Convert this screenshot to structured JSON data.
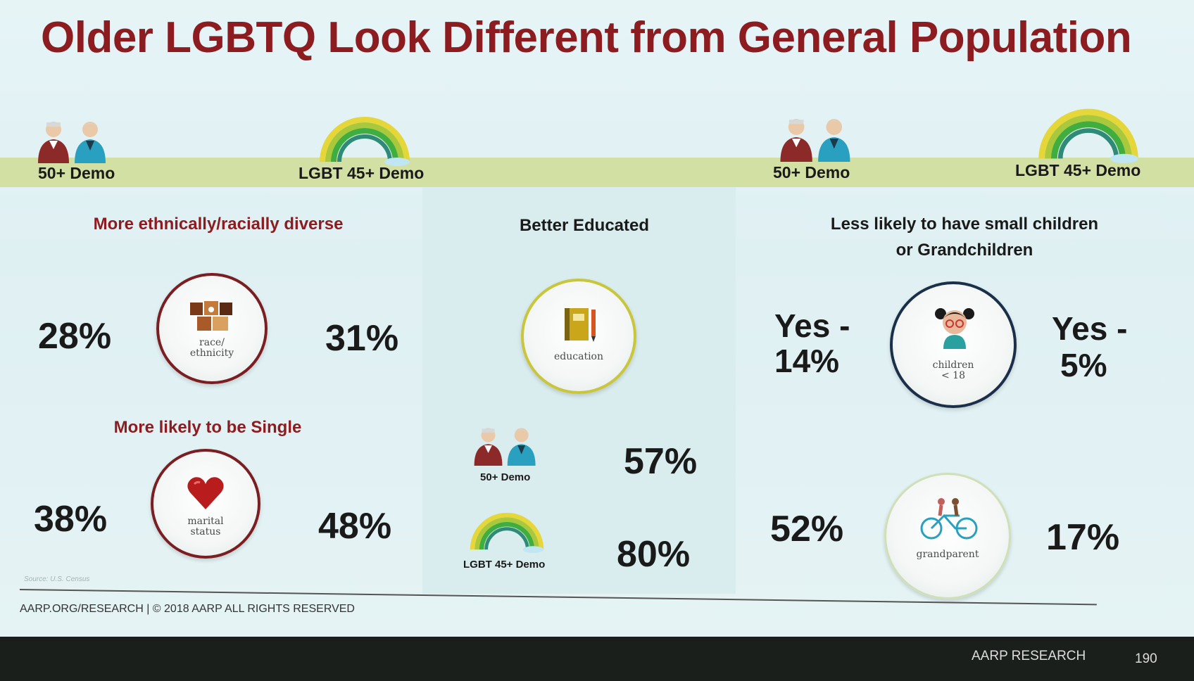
{
  "title": "Older LGBTQ Look Different from General Population",
  "band": {
    "left_demo": "50+ Demo",
    "left_lgbt": "LGBT 45+ Demo",
    "right_demo": "50+ Demo",
    "right_lgbt": "LGBT 45+ Demo"
  },
  "diverse": {
    "heading": "More ethnically/racially diverse",
    "left_pct": "28%",
    "right_pct": "31%",
    "icon_label_1": "race/",
    "icon_label_2": "ethnicity"
  },
  "single": {
    "heading": "More likely to be Single",
    "left_pct": "38%",
    "right_pct": "48%",
    "icon_label_1": "marital",
    "icon_label_2": "status"
  },
  "education": {
    "heading": "Better Educated",
    "icon_label": "education",
    "demo_label": "50+ Demo",
    "demo_pct": "57%",
    "lgbt_label": "LGBT 45+ Demo",
    "lgbt_pct": "80%"
  },
  "children": {
    "heading_line1": "Less likely to have small children",
    "heading_line2": "or Grandchildren",
    "left_yes": "Yes -",
    "left_pct": "14%",
    "right_yes": "Yes -",
    "right_pct": "5%",
    "icon_label_1": "children",
    "icon_label_2": "< 18"
  },
  "grandparent": {
    "left_pct": "52%",
    "right_pct": "17%",
    "icon_label": "grandparent"
  },
  "source": "Source: U.S. Census",
  "footer": "AARP.ORG/RESEARCH | © 2018 AARP ALL RIGHTS RESERVED",
  "brand": "AARP RESEARCH",
  "page_number": "190",
  "colors": {
    "title": "#8c1c1f",
    "band": "#d2e0a4",
    "ring_red": "#7a1e22",
    "ring_yellow": "#c9c63c",
    "ring_navy": "#1c2f4a",
    "ring_green": "#cfe0b8"
  },
  "icons": [
    "older-man-icon",
    "older-woman-icon",
    "rainbow-icon",
    "puzzle-icon",
    "heart-icon",
    "notebook-icon",
    "child-icon",
    "bicycle-icon"
  ]
}
